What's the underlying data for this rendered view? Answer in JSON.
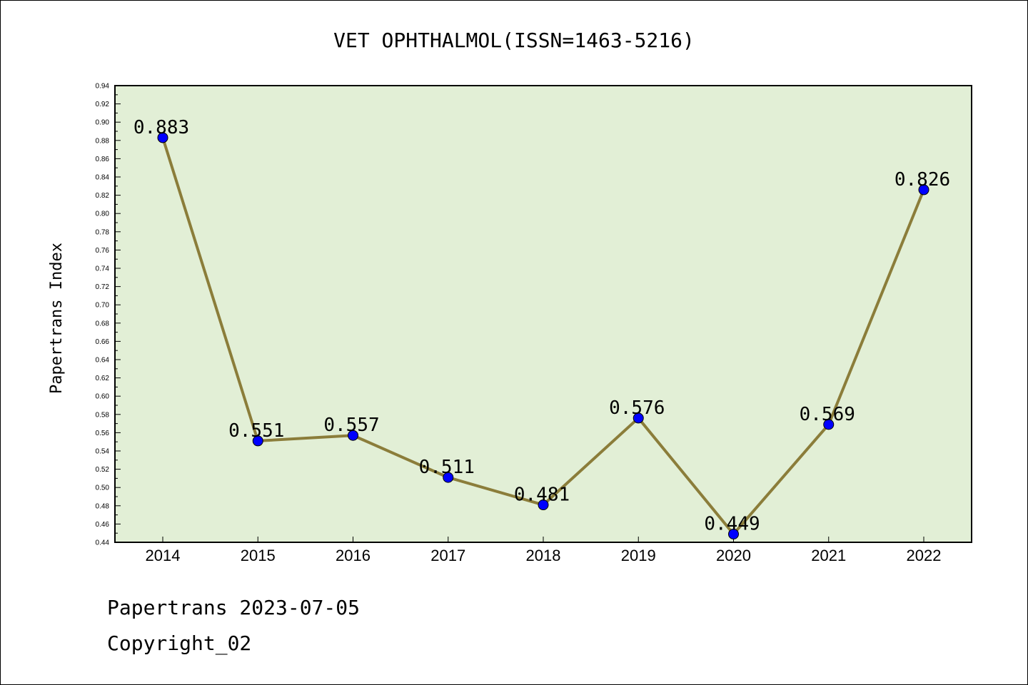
{
  "chart_data": {
    "type": "line",
    "title": "VET OPHTHALMOL(ISSN=1463-5216)",
    "xlabel": "",
    "ylabel": "Papertrans Index",
    "categories": [
      "2014",
      "2015",
      "2016",
      "2017",
      "2018",
      "2019",
      "2020",
      "2021",
      "2022"
    ],
    "series": [
      {
        "values": [
          0.883,
          0.551,
          0.557,
          0.511,
          0.481,
          0.576,
          0.449,
          0.569,
          0.826
        ]
      }
    ],
    "data_labels": [
      "0.883",
      "0.551",
      "0.557",
      "0.511",
      "0.481",
      "0.576",
      "0.449",
      "0.569",
      "0.826"
    ],
    "ylim": [
      0.44,
      0.94
    ],
    "yticks": [
      "0.44",
      "0.46",
      "0.48",
      "0.50",
      "0.52",
      "0.54",
      "0.56",
      "0.58",
      "0.60",
      "0.62",
      "0.64",
      "0.66",
      "0.68",
      "0.70",
      "0.72",
      "0.74",
      "0.76",
      "0.78",
      "0.80",
      "0.82",
      "0.84",
      "0.86",
      "0.88",
      "0.90",
      "0.92",
      "0.94"
    ],
    "grid": false,
    "legend": "none",
    "colors": {
      "plot_background": "#e2efd6",
      "line": "#8b7d3a",
      "marker": "#0000ff"
    }
  },
  "footer": {
    "line1": "Papertrans 2023-07-05",
    "line2": "Copyright_02"
  }
}
